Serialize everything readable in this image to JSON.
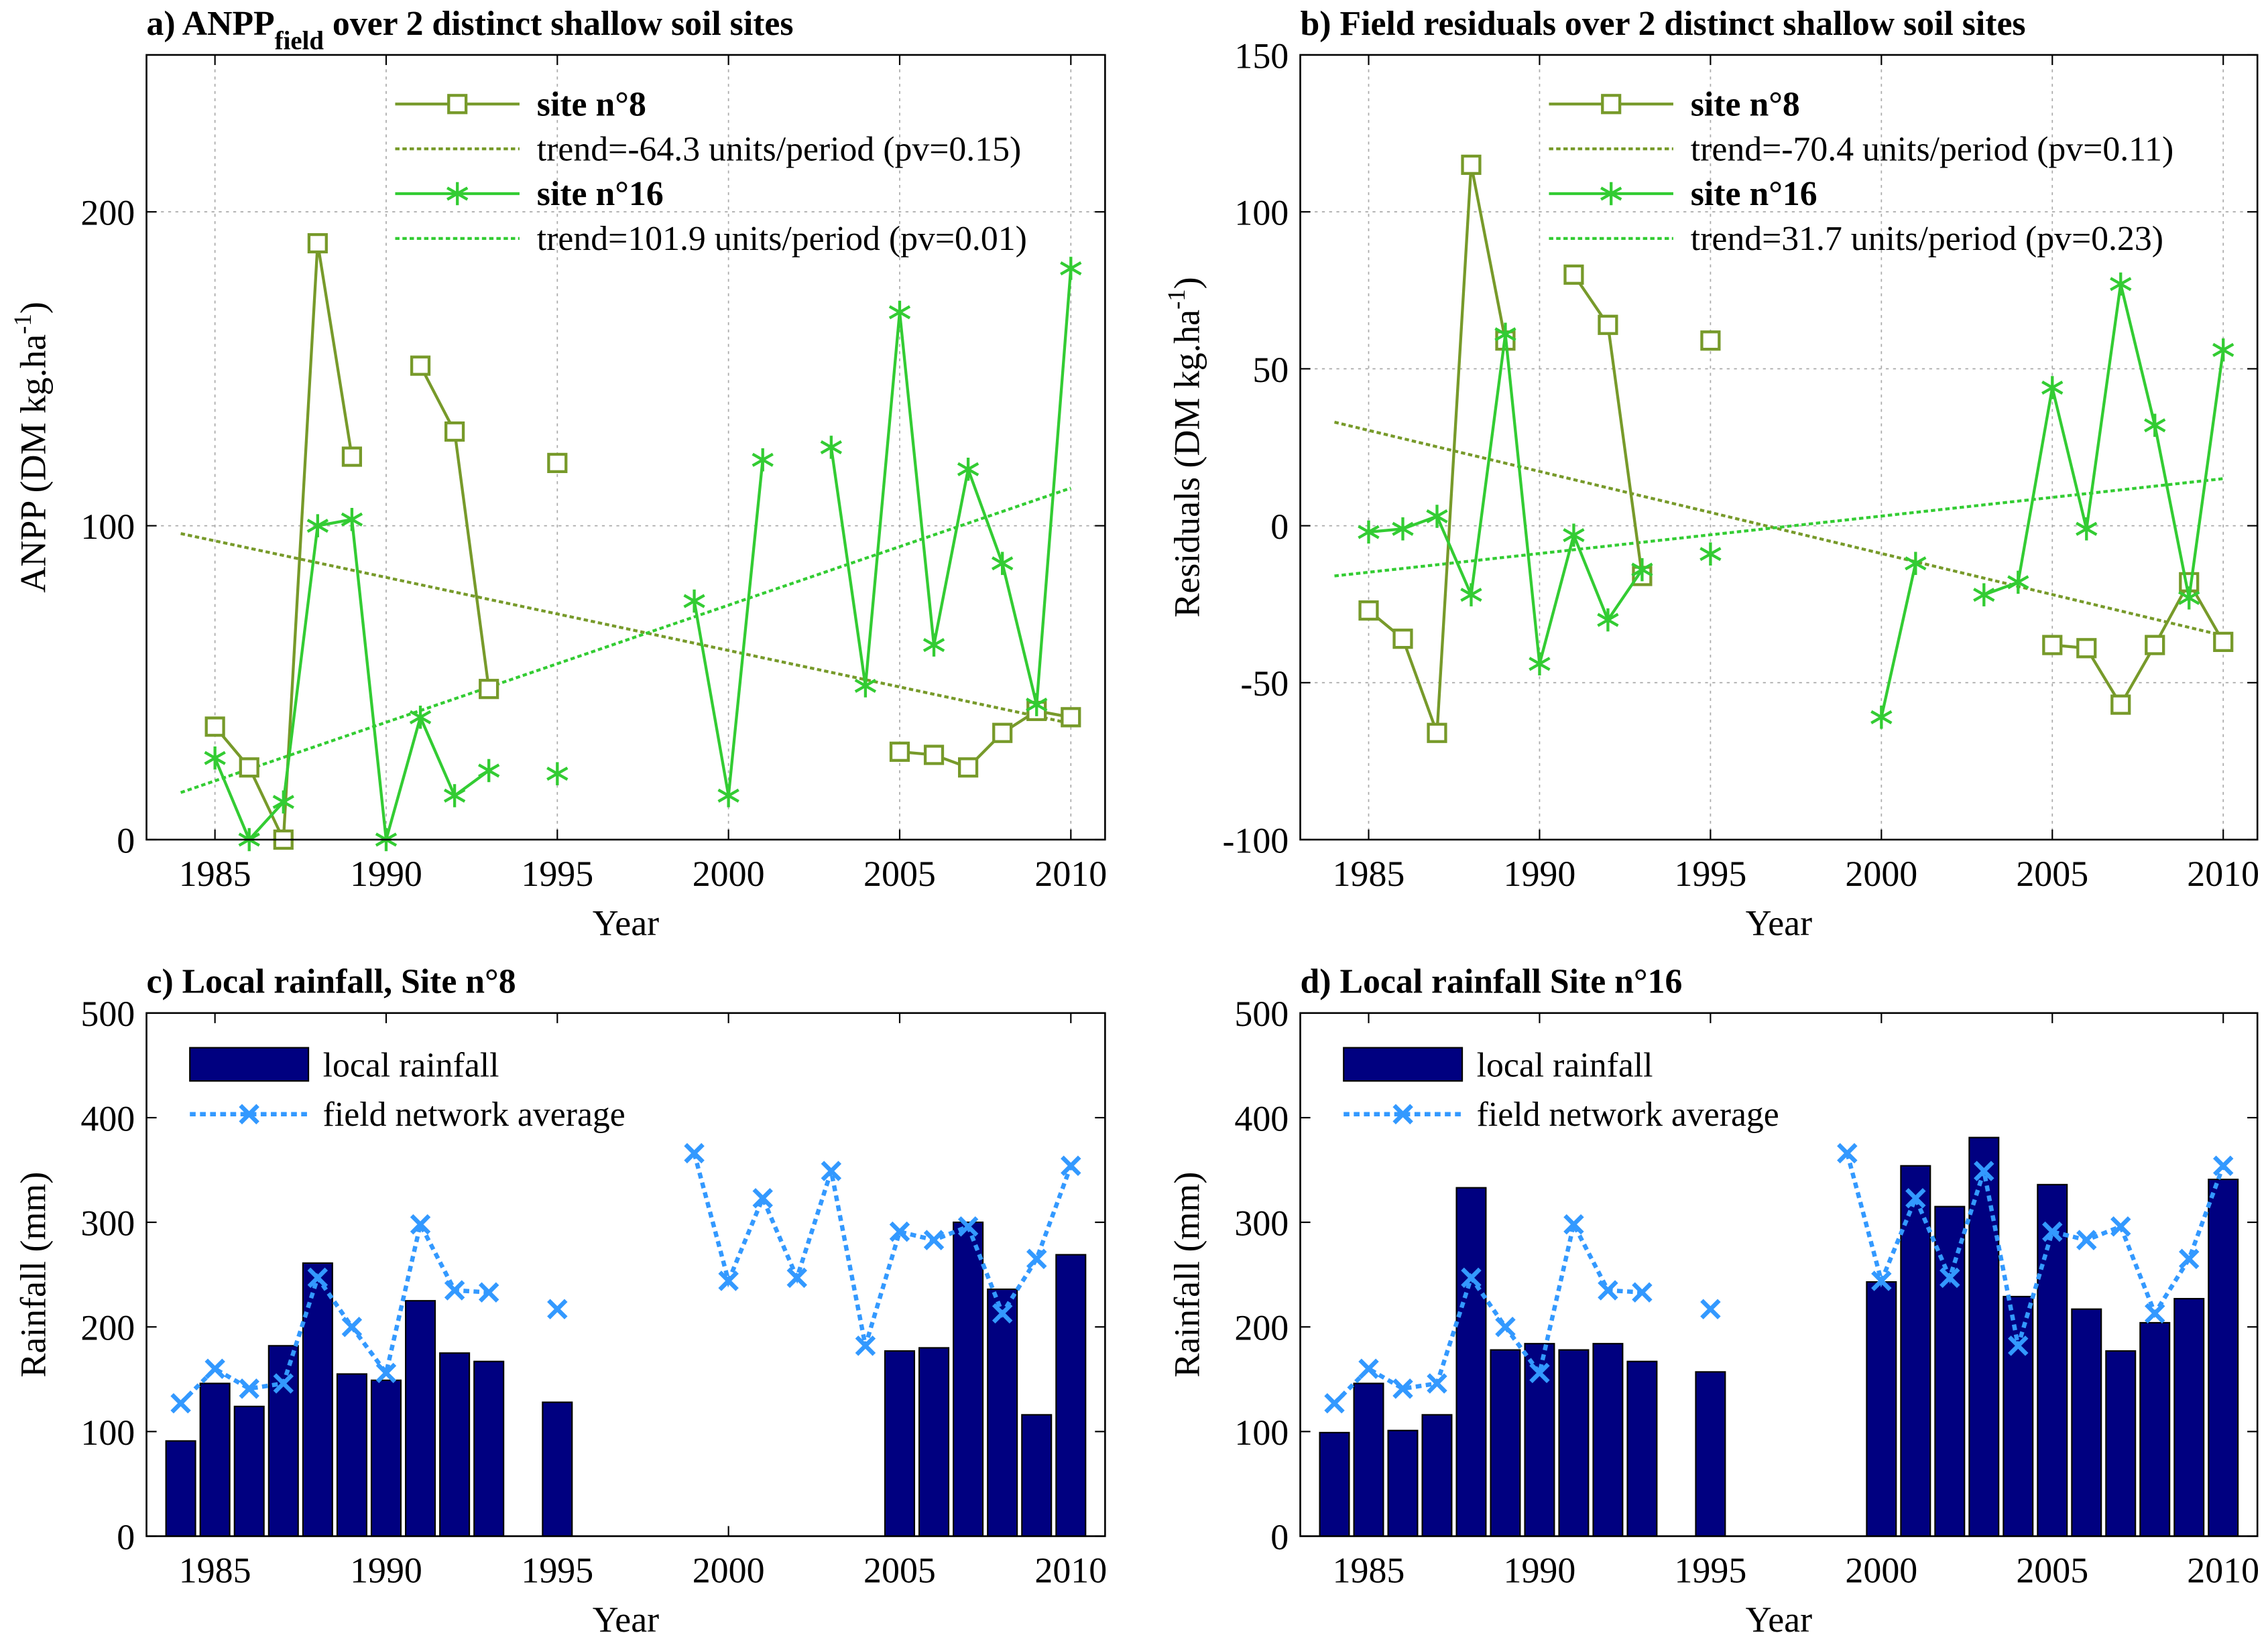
{
  "colors": {
    "site8": "#779a2a",
    "site16": "#33cc33",
    "bars": "#000080",
    "network": "#3399ff"
  },
  "chart_data": [
    {
      "id": "a",
      "type": "line",
      "title": "a) ANPP",
      "title_sub": "field",
      "title_rest": " over 2 distinct shallow soil sites",
      "xlabel": "Year",
      "ylabel": "ANPP (DM kg.ha",
      "ylabel_sup": "-1",
      "ylabel_end": ")",
      "xlim": [
        1983,
        2011
      ],
      "ylim": [
        0,
        250
      ],
      "xticks": [
        1985,
        1990,
        1995,
        2000,
        2005,
        2010
      ],
      "yticks": [
        0,
        100,
        200
      ],
      "grid": true,
      "x_start": 1984,
      "series": [
        {
          "name": "site n°8",
          "marker": "square",
          "values": [
            null,
            36,
            23,
            0,
            190,
            122,
            null,
            151,
            130,
            48,
            null,
            120,
            null,
            null,
            null,
            null,
            null,
            null,
            null,
            null,
            null,
            28,
            27,
            23,
            34,
            41,
            39
          ]
        },
        {
          "name": "site n°16",
          "marker": "star",
          "values": [
            null,
            26,
            0,
            12,
            100,
            102,
            0,
            39,
            14,
            22,
            null,
            21,
            null,
            null,
            null,
            76,
            14,
            121,
            null,
            125,
            49,
            168,
            62,
            118,
            88,
            43,
            182
          ]
        }
      ],
      "trends": [
        {
          "name": "trend=-64.3 units/period (pv=0.15)",
          "from": [
            1984,
            97.5
          ],
          "to": [
            2010,
            37
          ]
        },
        {
          "name": "trend=101.9 units/period (pv=0.01)",
          "from": [
            1984,
            15
          ],
          "to": [
            2010,
            112
          ]
        }
      ]
    },
    {
      "id": "b",
      "type": "line",
      "title": "b) Field residuals over 2 distinct shallow soil sites",
      "xlabel": "Year",
      "ylabel": "Residuals (DM kg.ha",
      "ylabel_sup": "-1",
      "ylabel_end": ")",
      "xlim": [
        1983,
        2011
      ],
      "ylim": [
        -100,
        150
      ],
      "xticks": [
        1985,
        1990,
        1995,
        2000,
        2005,
        2010
      ],
      "yticks": [
        -100,
        -50,
        0,
        50,
        100,
        150
      ],
      "grid": true,
      "x_start": 1984,
      "series": [
        {
          "name": "site n°8",
          "marker": "square",
          "values": [
            null,
            -27,
            -36,
            -66,
            115,
            59,
            null,
            80,
            64,
            -16,
            null,
            59,
            null,
            null,
            null,
            null,
            null,
            null,
            null,
            null,
            null,
            -38,
            -39,
            -57,
            -38,
            -18,
            -37
          ]
        },
        {
          "name": "site n°16",
          "marker": "star",
          "values": [
            null,
            -2,
            -1,
            3,
            -22,
            61,
            -44,
            -3,
            -30,
            -14,
            null,
            -9,
            null,
            null,
            null,
            null,
            -61,
            -12,
            null,
            -22,
            -18,
            44,
            -1,
            77,
            32,
            -23,
            56
          ]
        }
      ],
      "trends": [
        {
          "name": "trend=-70.4 units/period (pv=0.11)",
          "from": [
            1984,
            33
          ],
          "to": [
            2010,
            -35
          ]
        },
        {
          "name": "trend=31.7 units/period (pv=0.23)",
          "from": [
            1984,
            -16
          ],
          "to": [
            2010,
            15
          ]
        }
      ]
    },
    {
      "id": "c",
      "type": "bar",
      "title": "c) Local rainfall, Site n°8",
      "xlabel": "Year",
      "ylabel": "Rainfall (mm)",
      "xlim": [
        1983,
        2011
      ],
      "ylim": [
        0,
        500
      ],
      "xticks": [
        1985,
        1990,
        1995,
        2000,
        2005,
        2010
      ],
      "yticks": [
        0,
        100,
        200,
        300,
        400,
        500
      ],
      "grid": false,
      "x_start": 1984,
      "bars": {
        "name": "local rainfall",
        "values": [
          91,
          146,
          124,
          182,
          261,
          155,
          149,
          225,
          175,
          167,
          null,
          128,
          null,
          null,
          null,
          null,
          null,
          null,
          null,
          null,
          null,
          177,
          180,
          300,
          236,
          116,
          269
        ]
      },
      "line": {
        "name": "field network average",
        "values": [
          127,
          160,
          141,
          146,
          247,
          200,
          156,
          298,
          235,
          233,
          null,
          217,
          null,
          null,
          null,
          366,
          244,
          323,
          247,
          349,
          182,
          291,
          283,
          296,
          213,
          265,
          354
        ]
      }
    },
    {
      "id": "d",
      "type": "bar",
      "title": "d) Local rainfall Site n°16",
      "xlabel": "Year",
      "ylabel": "Rainfall (mm)",
      "xlim": [
        1983,
        2011
      ],
      "ylim": [
        0,
        500
      ],
      "xticks": [
        1985,
        1990,
        1995,
        2000,
        2005,
        2010
      ],
      "yticks": [
        0,
        100,
        200,
        300,
        400,
        500
      ],
      "grid": false,
      "x_start": 1984,
      "bars": {
        "name": "local rainfall",
        "values": [
          99,
          146,
          101,
          116,
          333,
          178,
          184,
          178,
          184,
          167,
          null,
          157,
          null,
          null,
          null,
          null,
          243,
          354,
          315,
          381,
          229,
          336,
          217,
          177,
          204,
          227,
          341
        ]
      },
      "line": {
        "name": "field network average",
        "values": [
          127,
          160,
          141,
          146,
          247,
          200,
          156,
          298,
          235,
          233,
          null,
          217,
          null,
          null,
          null,
          366,
          244,
          323,
          247,
          349,
          182,
          291,
          283,
          296,
          213,
          265,
          354
        ]
      }
    }
  ]
}
